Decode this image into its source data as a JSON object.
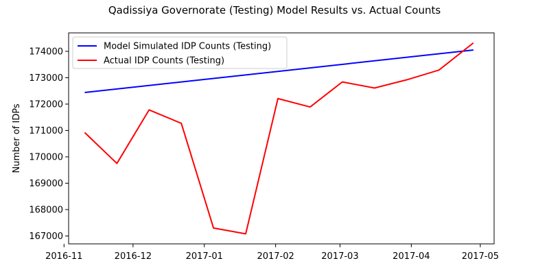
{
  "chart_data": {
    "type": "line",
    "title": "Qadissiya Governorate (Testing) Model Results vs. Actual Counts",
    "xlabel": "",
    "ylabel": "Number of IDPs",
    "xlim": [
      "2016-11-03",
      "2017-05-07"
    ],
    "ylim": [
      166700,
      174700
    ],
    "x_ticks": [
      "2016-11-01",
      "2016-12-01",
      "2017-01-01",
      "2017-02-01",
      "2017-03-01",
      "2017-04-01",
      "2017-05-01"
    ],
    "x_tick_labels": [
      "2016-11",
      "2016-12",
      "2017-01",
      "2017-02",
      "2017-03",
      "2017-04",
      "2017-05"
    ],
    "y_ticks": [
      167000,
      168000,
      169000,
      170000,
      171000,
      172000,
      173000,
      174000
    ],
    "y_tick_labels": [
      "167000",
      "168000",
      "169000",
      "170000",
      "171000",
      "172000",
      "173000",
      "174000"
    ],
    "grid": false,
    "legend_position": "top-left",
    "series": [
      {
        "name": "Model Simulated IDP Counts (Testing)",
        "color": "#0000ff",
        "x": [
          "2016-11-10",
          "2017-04-28"
        ],
        "y": [
          172440,
          174050
        ]
      },
      {
        "name": "Actual IDP Counts (Testing)",
        "color": "#ff0000",
        "x": [
          "2016-11-10",
          "2016-11-24",
          "2016-12-08",
          "2016-12-22",
          "2017-01-05",
          "2017-01-19",
          "2017-02-02",
          "2017-02-16",
          "2017-03-02",
          "2017-03-16",
          "2017-03-30",
          "2017-04-13",
          "2017-04-28"
        ],
        "y": [
          170920,
          169750,
          171780,
          171270,
          167300,
          167080,
          172210,
          171890,
          172840,
          172610,
          172920,
          173290,
          174320
        ]
      }
    ]
  }
}
